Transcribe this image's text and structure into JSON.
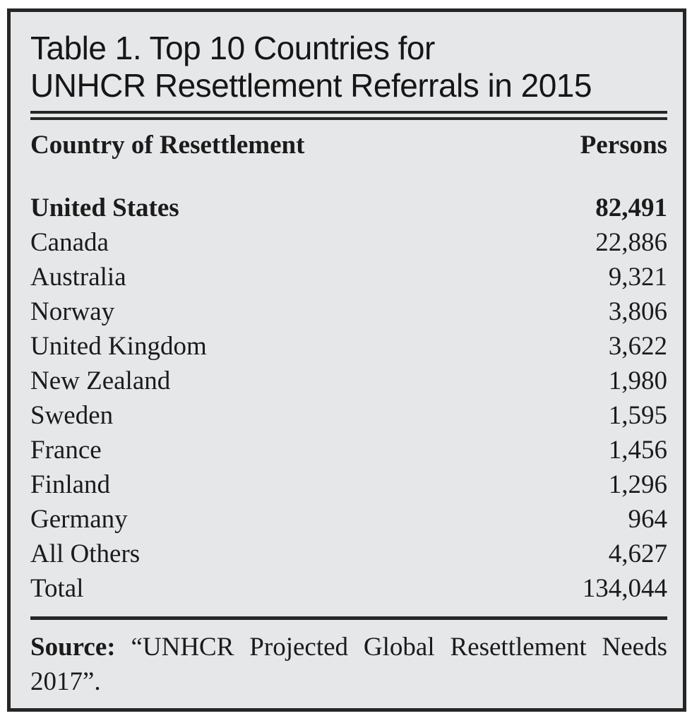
{
  "figure": {
    "title_lines": [
      "Table 1. Top 10 Countries for",
      "UNHCR Resettlement Referrals in 2015"
    ],
    "columns": [
      "Country of Resettlement",
      "Persons"
    ],
    "rows": [
      {
        "country": "United States",
        "persons": "82,491"
      },
      {
        "country": "Canada",
        "persons": "22,886"
      },
      {
        "country": "Australia",
        "persons": "9,321"
      },
      {
        "country": "Norway",
        "persons": "3,806"
      },
      {
        "country": "United Kingdom",
        "persons": "3,622"
      },
      {
        "country": "New Zealand",
        "persons": "1,980"
      },
      {
        "country": "Sweden",
        "persons": "1,595"
      },
      {
        "country": "France",
        "persons": "1,456"
      },
      {
        "country": "Finland",
        "persons": "1,296"
      },
      {
        "country": "Germany",
        "persons": "964"
      },
      {
        "country": "All Others",
        "persons": "4,627"
      },
      {
        "country": "Total",
        "persons": "134,044"
      }
    ],
    "source_label": "Source:",
    "source_text": "“UNHCR Projected Global Resettlement Needs 2017”."
  },
  "chart_data": {
    "type": "table",
    "title": "Table 1. Top 10 Countries for UNHCR Resettlement Referrals in 2015",
    "columns": [
      "Country of Resettlement",
      "Persons"
    ],
    "rows": [
      [
        "United States",
        82491
      ],
      [
        "Canada",
        22886
      ],
      [
        "Australia",
        9321
      ],
      [
        "Norway",
        3806
      ],
      [
        "United Kingdom",
        3622
      ],
      [
        "New Zealand",
        1980
      ],
      [
        "Sweden",
        1595
      ],
      [
        "France",
        1456
      ],
      [
        "Finland",
        1296
      ],
      [
        "Germany",
        964
      ],
      [
        "All Others",
        4627
      ],
      [
        "Total",
        134044
      ]
    ],
    "emphasized_row": "United States",
    "source": "Source: “UNHCR Projected Global Resettlement Needs 2017”."
  },
  "colors": {
    "panel_background": "#e6e7e9",
    "frame_and_rules": "#262626",
    "text": "#1b1b1b",
    "page_background": "#ffffff"
  }
}
